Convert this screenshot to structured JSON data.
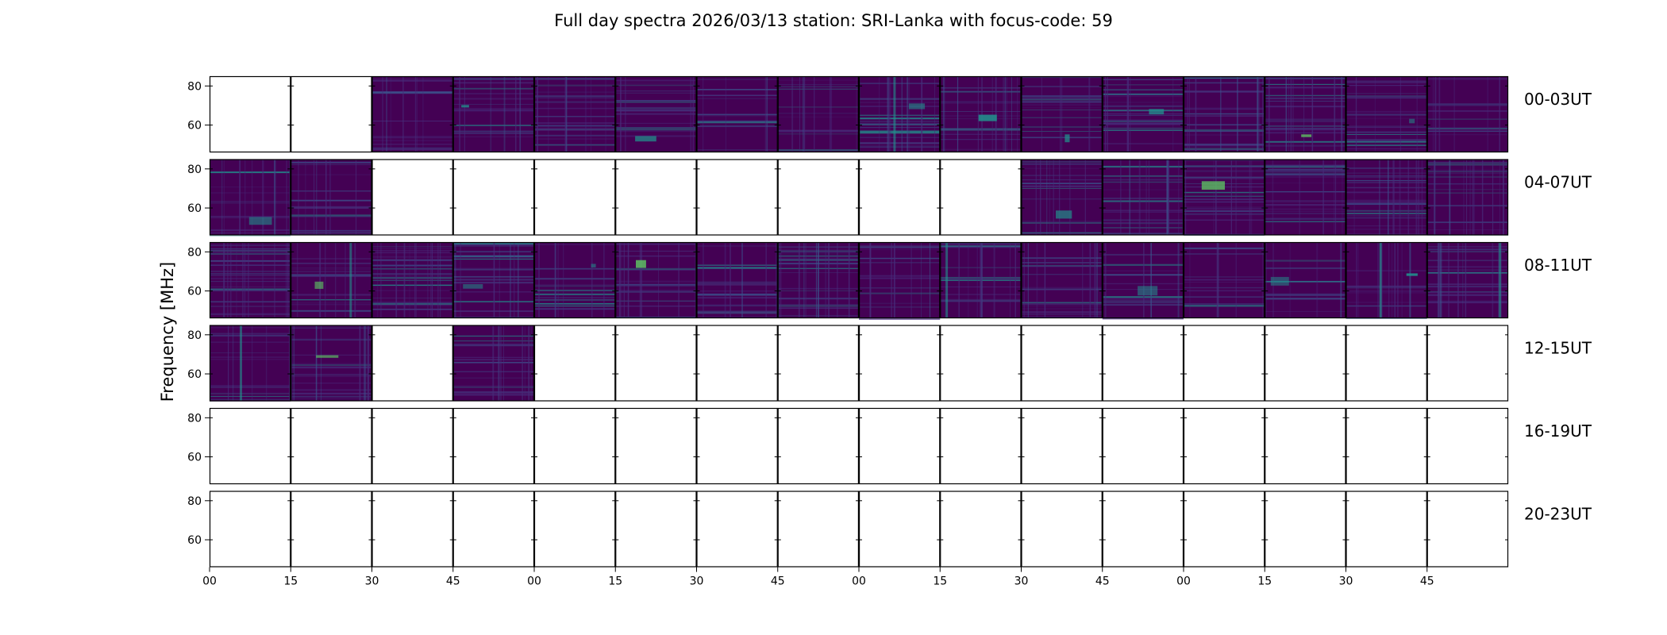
{
  "chart_data": {
    "type": "heatmap",
    "title": "Full day spectra 2026/03/13 station: SRI-Lanka with focus-code: 59",
    "ylabel": "Frequency [MHz]",
    "xlabel": "",
    "ylim": [
      46,
      85
    ],
    "y_ticks": [
      "80",
      "60"
    ],
    "y_tick_values": [
      80,
      60
    ],
    "x_tick_labels": [
      "00",
      "15",
      "30",
      "45",
      "00",
      "15",
      "30",
      "45",
      "00",
      "15",
      "30",
      "45",
      "00",
      "15",
      "30",
      "45"
    ],
    "colormap": "viridis",
    "row_labels": [
      "00-03UT",
      "04-07UT",
      "08-11UT",
      "12-15UT",
      "16-19UT",
      "20-23UT"
    ],
    "panels_per_row": 16,
    "panel_minutes": 15,
    "availability": [
      [
        0,
        0,
        1,
        1,
        1,
        1,
        1,
        1,
        1,
        1,
        1,
        1,
        1,
        1,
        1,
        1
      ],
      [
        1,
        1,
        0,
        0,
        0,
        0,
        0,
        0,
        0,
        0,
        1,
        1,
        1,
        1,
        1,
        1
      ],
      [
        1,
        1,
        1,
        1,
        1,
        1,
        1,
        1,
        1,
        1,
        1,
        1,
        1,
        1,
        1,
        1
      ],
      [
        1,
        1,
        0,
        1,
        0,
        0,
        0,
        0,
        0,
        0,
        0,
        0,
        0,
        0,
        0,
        0
      ],
      [
        0,
        0,
        0,
        0,
        0,
        0,
        0,
        0,
        0,
        0,
        0,
        0,
        0,
        0,
        0,
        0
      ],
      [
        0,
        0,
        0,
        0,
        0,
        0,
        0,
        0,
        0,
        0,
        0,
        0,
        0,
        0,
        0,
        0
      ]
    ]
  },
  "colors": {
    "base": "#440154",
    "low": "#472c7a",
    "mid": "#3b528b",
    "teal": "#21918c",
    "green": "#5ec962",
    "yellow": "#fde725"
  }
}
